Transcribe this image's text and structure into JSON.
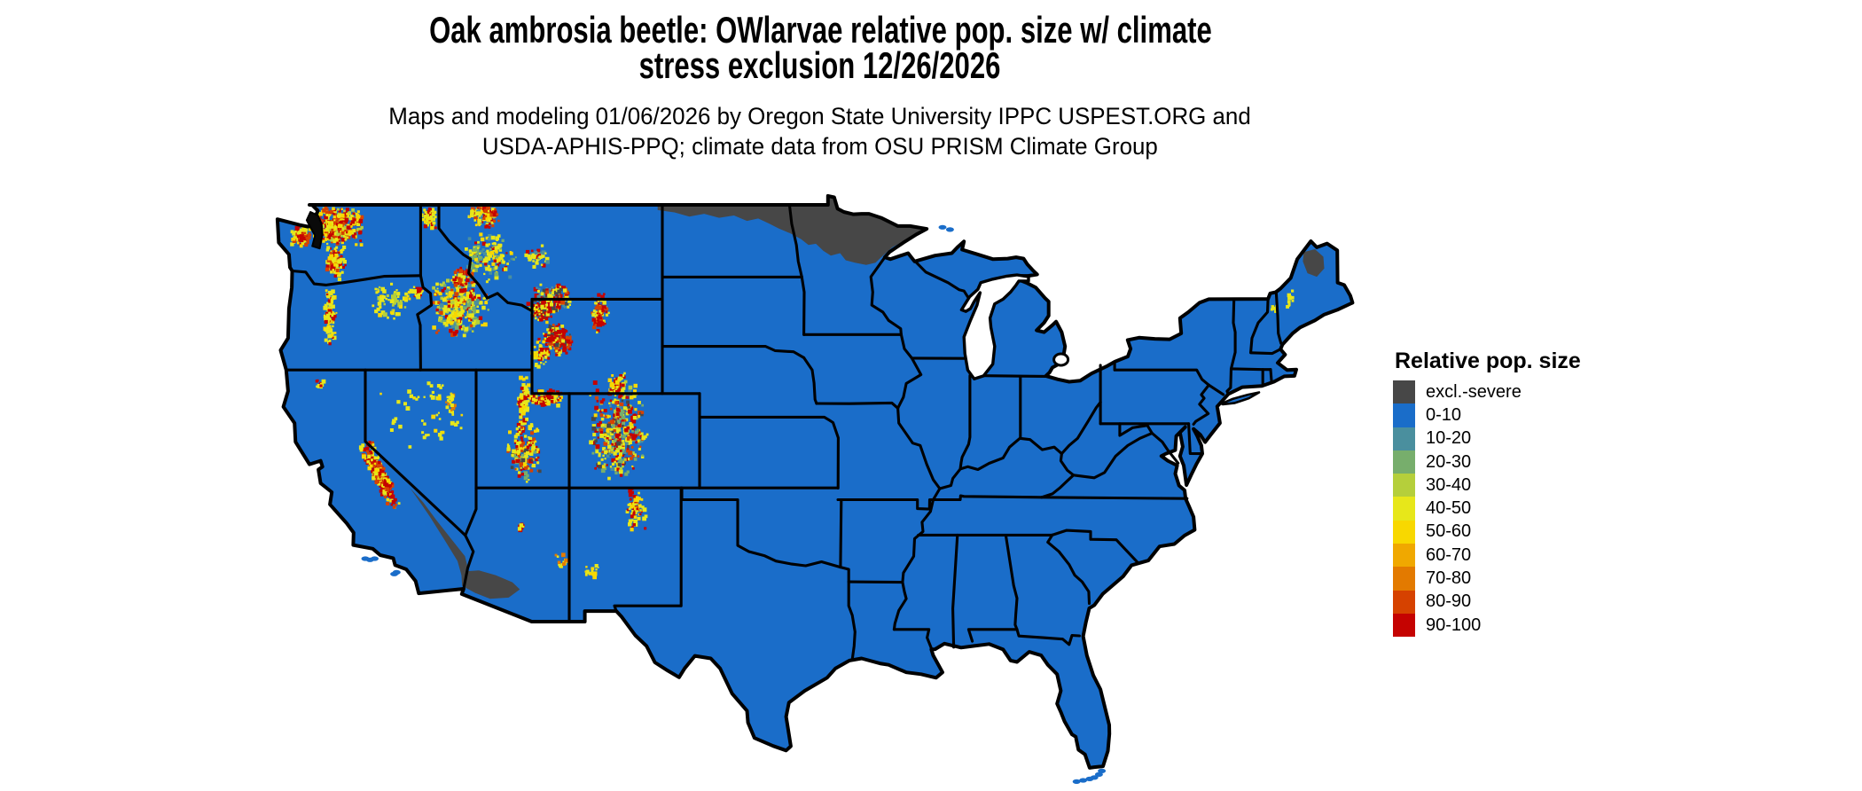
{
  "header": {
    "title_line1": "Oak ambrosia beetle: OWlarvae relative pop. size w/ climate",
    "title_line2": "stress exclusion 12/26/2026",
    "subtitle_line1": "Maps and modeling 01/06/2026 by Oregon State University IPPC USPEST.ORG and",
    "subtitle_line2": "USDA-APHIS-PPQ; climate data from OSU PRISM Climate Group"
  },
  "legend": {
    "title": "Relative pop. size",
    "entries": [
      {
        "label": "excl.-severe",
        "color": "#474747"
      },
      {
        "label": "0-10",
        "color": "#1a6dc9"
      },
      {
        "label": "10-20",
        "color": "#4a8f9e"
      },
      {
        "label": "20-30",
        "color": "#77ae6c"
      },
      {
        "label": "30-40",
        "color": "#b5cf3b"
      },
      {
        "label": "40-50",
        "color": "#e7e71a"
      },
      {
        "label": "50-60",
        "color": "#f8d800"
      },
      {
        "label": "60-70",
        "color": "#f0a800"
      },
      {
        "label": "70-80",
        "color": "#e37a00"
      },
      {
        "label": "80-90",
        "color": "#d64200"
      },
      {
        "label": "90-100",
        "color": "#c50301"
      }
    ]
  },
  "map": {
    "land_color": "#1a6dc9",
    "border_color": "#000000",
    "excluded_color": "#474747",
    "water_color": "#ffffff",
    "excluded_regions": {
      "north_dakota_minnesota_band": [
        [
          -104.3,
          49.0
        ],
        [
          -95.155,
          49.0
        ],
        [
          -95.155,
          49.38
        ],
        [
          -94.82,
          49.32
        ],
        [
          -94.64,
          48.84
        ],
        [
          -94.3,
          48.7
        ],
        [
          -93.8,
          48.6
        ],
        [
          -93.35,
          48.62
        ],
        [
          -92.95,
          48.62
        ],
        [
          -92.3,
          48.45
        ],
        [
          -91.4,
          48.1
        ],
        [
          -90.75,
          48.1
        ],
        [
          -89.85,
          47.98
        ],
        [
          -90.35,
          47.72
        ],
        [
          -91.0,
          47.5
        ],
        [
          -91.7,
          47.2
        ],
        [
          -92.2,
          46.85
        ],
        [
          -92.6,
          46.55
        ],
        [
          -93.1,
          46.45
        ],
        [
          -93.7,
          46.55
        ],
        [
          -94.2,
          46.65
        ],
        [
          -94.5,
          46.95
        ],
        [
          -95.0,
          46.85
        ],
        [
          -95.4,
          47.05
        ],
        [
          -95.8,
          47.35
        ],
        [
          -96.2,
          47.3
        ],
        [
          -96.6,
          47.55
        ],
        [
          -97.2,
          47.8
        ],
        [
          -97.8,
          48.0
        ],
        [
          -98.3,
          48.2
        ],
        [
          -98.9,
          48.42
        ],
        [
          -99.5,
          48.32
        ],
        [
          -100.2,
          48.55
        ],
        [
          -101.0,
          48.45
        ],
        [
          -101.8,
          48.62
        ],
        [
          -102.6,
          48.5
        ],
        [
          -103.4,
          48.68
        ],
        [
          -104.3,
          48.78
        ]
      ],
      "northern_maine": [
        [
          -69.6,
          47.0
        ],
        [
          -69.0,
          47.12
        ],
        [
          -68.55,
          46.8
        ],
        [
          -68.5,
          46.3
        ],
        [
          -68.9,
          45.95
        ],
        [
          -69.4,
          46.1
        ],
        [
          -69.65,
          46.6
        ]
      ],
      "mojave_desert": [
        [
          -117.6,
          37.0
        ],
        [
          -116.9,
          36.4
        ],
        [
          -116.2,
          35.65
        ],
        [
          -115.4,
          34.85
        ],
        [
          -114.65,
          34.1
        ],
        [
          -114.4,
          33.3
        ],
        [
          -114.75,
          33.05
        ],
        [
          -115.05,
          33.9
        ],
        [
          -115.75,
          34.8
        ],
        [
          -116.55,
          35.8
        ],
        [
          -117.25,
          36.6
        ]
      ],
      "southwest_arizona": [
        [
          -114.85,
          33.45
        ],
        [
          -113.9,
          33.5
        ],
        [
          -113.0,
          33.3
        ],
        [
          -112.1,
          33.0
        ],
        [
          -111.7,
          32.7
        ],
        [
          -112.3,
          32.35
        ],
        [
          -113.3,
          32.3
        ],
        [
          -114.1,
          32.55
        ],
        [
          -114.8,
          32.85
        ]
      ],
      "wind_river_core": [
        [
          -110.15,
          43.95
        ],
        [
          -109.35,
          43.6
        ],
        [
          -109.0,
          43.1
        ],
        [
          -109.65,
          42.9
        ],
        [
          -110.25,
          43.35
        ]
      ],
      "yellowstone_core": [
        [
          -110.95,
          44.65
        ],
        [
          -110.25,
          44.75
        ],
        [
          -109.9,
          44.45
        ],
        [
          -110.4,
          44.2
        ],
        [
          -110.95,
          44.35
        ]
      ]
    },
    "hotspots": [
      {
        "name": "north-cascades",
        "lon": -121.5,
        "lat": 48.1,
        "dlon": 1.5,
        "dlat": 0.85,
        "slope": 0,
        "n": 300,
        "palette": [
          [
            10,
            3
          ],
          [
            9,
            2
          ],
          [
            6,
            2
          ],
          [
            5,
            3
          ],
          [
            4,
            1
          ]
        ]
      },
      {
        "name": "wa-south-cascades",
        "lon": -121.6,
        "lat": 46.6,
        "dlon": 0.55,
        "dlat": 0.8,
        "slope": 0,
        "n": 90,
        "palette": [
          [
            10,
            2
          ],
          [
            9,
            1
          ],
          [
            5,
            3
          ],
          [
            6,
            1
          ]
        ]
      },
      {
        "name": "olympics",
        "lon": -123.45,
        "lat": 47.65,
        "dlon": 0.5,
        "dlat": 0.4,
        "slope": 0,
        "n": 55,
        "palette": [
          [
            10,
            2
          ],
          [
            9,
            1
          ],
          [
            5,
            2
          ],
          [
            6,
            1
          ]
        ]
      },
      {
        "name": "oregon-cascades",
        "lon": -121.9,
        "lat": 44.3,
        "dlon": 0.35,
        "dlat": 1.5,
        "slope": 0,
        "n": 80,
        "palette": [
          [
            5,
            4
          ],
          [
            6,
            1
          ],
          [
            10,
            1
          ]
        ]
      },
      {
        "name": "blue-mountains",
        "lon": -118.6,
        "lat": 44.9,
        "dlon": 1.1,
        "dlat": 0.8,
        "slope": 0,
        "n": 60,
        "palette": [
          [
            5,
            4
          ],
          [
            4,
            1
          ],
          [
            6,
            1
          ]
        ]
      },
      {
        "name": "wallowa",
        "lon": -117.25,
        "lat": 45.3,
        "dlon": 0.35,
        "dlat": 0.3,
        "slope": 0,
        "n": 20,
        "palette": [
          [
            10,
            1
          ],
          [
            5,
            2
          ]
        ]
      },
      {
        "name": "idaho-selkirk",
        "lon": -116.6,
        "lat": 48.4,
        "dlon": 0.5,
        "dlat": 0.55,
        "slope": 0,
        "n": 40,
        "palette": [
          [
            5,
            2
          ],
          [
            10,
            1
          ],
          [
            6,
            1
          ]
        ]
      },
      {
        "name": "idaho-central",
        "lon": -114.9,
        "lat": 44.7,
        "dlon": 1.6,
        "dlat": 1.3,
        "slope": 0,
        "n": 300,
        "palette": [
          [
            5,
            4
          ],
          [
            6,
            2
          ],
          [
            4,
            2
          ],
          [
            3,
            1
          ],
          [
            2,
            1
          ],
          [
            10,
            1
          ],
          [
            9,
            1
          ]
        ]
      },
      {
        "name": "bitterroot-red",
        "lon": -114.8,
        "lat": 45.8,
        "dlon": 0.7,
        "dlat": 0.5,
        "slope": 0,
        "n": 50,
        "palette": [
          [
            10,
            2
          ],
          [
            9,
            1
          ],
          [
            5,
            1
          ]
        ]
      },
      {
        "name": "glacier",
        "lon": -113.6,
        "lat": 48.55,
        "dlon": 0.9,
        "dlat": 0.55,
        "slope": 0,
        "n": 90,
        "palette": [
          [
            10,
            2
          ],
          [
            9,
            1
          ],
          [
            5,
            2
          ],
          [
            6,
            1
          ],
          [
            2,
            1
          ]
        ]
      },
      {
        "name": "montana-west",
        "lon": -113.3,
        "lat": 46.8,
        "dlon": 1.4,
        "dlat": 1.1,
        "slope": 0,
        "n": 120,
        "palette": [
          [
            5,
            3
          ],
          [
            6,
            1
          ],
          [
            2,
            1
          ],
          [
            3,
            1
          ],
          [
            10,
            1
          ]
        ]
      },
      {
        "name": "little-belt",
        "lon": -110.8,
        "lat": 46.8,
        "dlon": 0.7,
        "dlat": 0.5,
        "slope": 0,
        "n": 45,
        "palette": [
          [
            5,
            3
          ],
          [
            2,
            1
          ],
          [
            10,
            1
          ]
        ]
      },
      {
        "name": "beartooth",
        "lon": -109.9,
        "lat": 45.1,
        "dlon": 1.0,
        "dlat": 0.6,
        "slope": 0,
        "n": 120,
        "palette": [
          [
            10,
            3
          ],
          [
            9,
            1
          ],
          [
            5,
            2
          ],
          [
            2,
            1
          ],
          [
            0,
            1
          ]
        ]
      },
      {
        "name": "yellowstone-ring",
        "lon": -110.5,
        "lat": 44.5,
        "dlon": 0.8,
        "dlat": 0.55,
        "slope": 0,
        "n": 100,
        "palette": [
          [
            10,
            3
          ],
          [
            5,
            2
          ],
          [
            6,
            1
          ],
          [
            0,
            1
          ]
        ]
      },
      {
        "name": "wind-river",
        "lon": -109.7,
        "lat": 43.3,
        "dlon": 0.8,
        "dlat": 0.7,
        "slope": 0,
        "n": 130,
        "palette": [
          [
            10,
            4
          ],
          [
            9,
            2
          ],
          [
            5,
            2
          ],
          [
            0,
            1
          ]
        ]
      },
      {
        "name": "bighorn",
        "lon": -107.4,
        "lat": 44.4,
        "dlon": 0.5,
        "dlat": 0.85,
        "slope": 0,
        "n": 80,
        "palette": [
          [
            10,
            3
          ],
          [
            9,
            1
          ],
          [
            5,
            2
          ]
        ]
      },
      {
        "name": "wyoming-range",
        "lon": -110.6,
        "lat": 42.7,
        "dlon": 0.5,
        "dlat": 0.7,
        "slope": 0,
        "n": 45,
        "palette": [
          [
            5,
            2
          ],
          [
            10,
            1
          ],
          [
            6,
            1
          ]
        ]
      },
      {
        "name": "uinta",
        "lon": -110.4,
        "lat": 40.8,
        "dlon": 0.95,
        "dlat": 0.4,
        "slope": 0,
        "n": 80,
        "palette": [
          [
            10,
            3
          ],
          [
            5,
            2
          ],
          [
            6,
            1
          ]
        ]
      },
      {
        "name": "wasatch",
        "lon": -111.5,
        "lat": 40.5,
        "dlon": 0.35,
        "dlat": 1.4,
        "slope": 0,
        "n": 70,
        "palette": [
          [
            5,
            3
          ],
          [
            10,
            1
          ],
          [
            6,
            1
          ]
        ]
      },
      {
        "name": "utah-plateaus",
        "lon": -111.5,
        "lat": 38.4,
        "dlon": 0.95,
        "dlat": 1.3,
        "slope": 0,
        "n": 140,
        "palette": [
          [
            10,
            2
          ],
          [
            9,
            1
          ],
          [
            5,
            3
          ],
          [
            6,
            1
          ],
          [
            3,
            1
          ],
          [
            0,
            1
          ]
        ]
      },
      {
        "name": "colorado-rockies",
        "lon": -106.4,
        "lat": 39.4,
        "dlon": 1.6,
        "dlat": 2.1,
        "slope": 0,
        "n": 340,
        "palette": [
          [
            10,
            3
          ],
          [
            9,
            1
          ],
          [
            5,
            3
          ],
          [
            6,
            1
          ],
          [
            4,
            1
          ],
          [
            3,
            1
          ],
          [
            2,
            1
          ],
          [
            0,
            1
          ]
        ]
      },
      {
        "name": "medicine-bow",
        "lon": -106.5,
        "lat": 41.3,
        "dlon": 0.6,
        "dlat": 0.5,
        "slope": 0,
        "n": 40,
        "palette": [
          [
            5,
            2
          ],
          [
            10,
            1
          ],
          [
            6,
            1
          ]
        ]
      },
      {
        "name": "sangre-de-cristo",
        "lon": -105.5,
        "lat": 36.1,
        "dlon": 0.55,
        "dlat": 1.0,
        "slope": 0,
        "n": 70,
        "palette": [
          [
            10,
            2
          ],
          [
            5,
            2
          ],
          [
            6,
            1
          ]
        ]
      },
      {
        "name": "nm-black-range",
        "lon": -107.9,
        "lat": 33.4,
        "dlon": 0.45,
        "dlat": 0.35,
        "slope": 0,
        "n": 14,
        "palette": [
          [
            5,
            1
          ],
          [
            6,
            1
          ]
        ]
      },
      {
        "name": "az-san-francisco-peaks",
        "lon": -111.65,
        "lat": 35.33,
        "dlon": 0.22,
        "dlat": 0.16,
        "slope": 0,
        "n": 9,
        "palette": [
          [
            10,
            2
          ],
          [
            5,
            1
          ]
        ]
      },
      {
        "name": "az-white-mountains",
        "lon": -109.35,
        "lat": 33.9,
        "dlon": 0.45,
        "dlat": 0.3,
        "slope": 0,
        "n": 14,
        "palette": [
          [
            5,
            2
          ],
          [
            8,
            1
          ]
        ]
      },
      {
        "name": "sierra-nevada",
        "lon": -119.25,
        "lat": 37.55,
        "dlon": 0.42,
        "dlat": 1.45,
        "slope": -0.62,
        "n": 240,
        "palette": [
          [
            10,
            4
          ],
          [
            9,
            2
          ],
          [
            5,
            3
          ],
          [
            6,
            1
          ]
        ]
      },
      {
        "name": "shasta",
        "lon": -122.4,
        "lat": 41.35,
        "dlon": 0.28,
        "dlat": 0.22,
        "slope": 0,
        "n": 12,
        "palette": [
          [
            10,
            1
          ],
          [
            5,
            1
          ]
        ]
      },
      {
        "name": "nevada-sparse",
        "lon": -116.9,
        "lat": 40.2,
        "dlon": 2.3,
        "dlat": 1.7,
        "slope": 0,
        "n": 40,
        "palette": [
          [
            5,
            3
          ],
          [
            6,
            1
          ]
        ]
      },
      {
        "name": "ruby-mountains",
        "lon": -115.45,
        "lat": 40.55,
        "dlon": 0.28,
        "dlat": 0.55,
        "slope": 0,
        "n": 18,
        "palette": [
          [
            5,
            2
          ],
          [
            8,
            1
          ]
        ]
      },
      {
        "name": "maine-west",
        "lon": -70.3,
        "lat": 45.0,
        "dlon": 0.45,
        "dlat": 0.55,
        "slope": 0,
        "n": 8,
        "palette": [
          [
            5,
            1
          ]
        ]
      },
      {
        "name": "white-mountains",
        "lon": -71.25,
        "lat": 44.65,
        "dlon": 0.22,
        "dlat": 0.18,
        "slope": 0,
        "n": 5,
        "palette": [
          [
            5,
            1
          ]
        ]
      }
    ],
    "islands": {
      "florida_keys": [
        [
          -81.8,
          24.55
        ],
        [
          -81.45,
          24.6
        ],
        [
          -81.1,
          24.66
        ],
        [
          -80.85,
          24.72
        ],
        [
          -80.6,
          24.85
        ],
        [
          -80.45,
          25.0
        ]
      ],
      "channel_islands": [
        [
          -120.0,
          34.0
        ],
        [
          -119.75,
          33.95
        ],
        [
          -119.5,
          34.0
        ],
        [
          -118.45,
          33.35
        ],
        [
          -118.32,
          33.42
        ]
      ],
      "isle_royale": [
        [
          -89.0,
          48.05
        ],
        [
          -88.6,
          47.95
        ]
      ]
    }
  }
}
